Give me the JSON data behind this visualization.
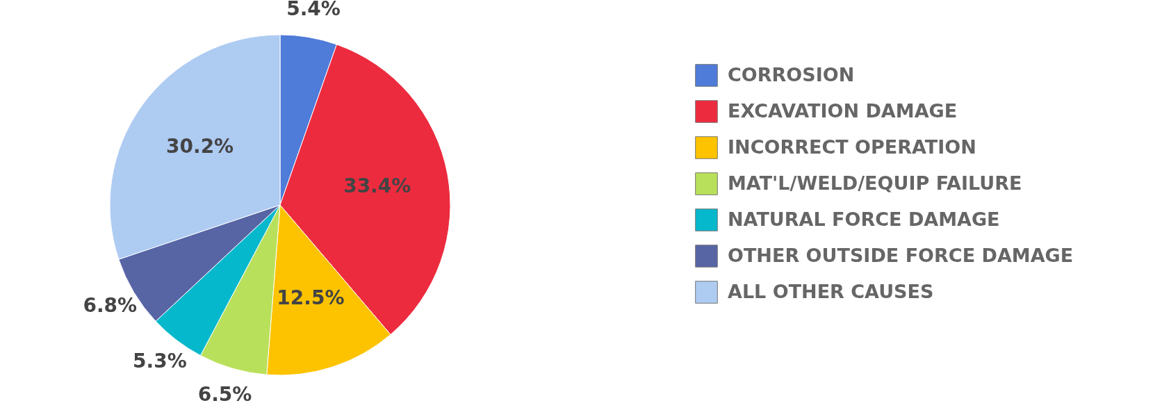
{
  "chart_data": {
    "type": "pie",
    "categories": [
      "CORROSION",
      "EXCAVATION DAMAGE",
      "INCORRECT OPERATION",
      "MAT'L/WELD/EQUIP FAILURE",
      "NATURAL FORCE DAMAGE",
      "OTHER OUTSIDE FORCE DAMAGE",
      "ALL OTHER CAUSES"
    ],
    "values": [
      5.4,
      33.4,
      12.5,
      6.5,
      5.3,
      6.8,
      30.2
    ],
    "value_labels": [
      "5.4%",
      "33.4%",
      "12.5%",
      "6.5%",
      "5.3%",
      "6.8%",
      "30.2%"
    ],
    "colors": [
      "#4f7bd9",
      "#ed2b3f",
      "#fdc300",
      "#b9e05a",
      "#05b8cc",
      "#5765a5",
      "#aecbf2"
    ],
    "legend": "right"
  }
}
